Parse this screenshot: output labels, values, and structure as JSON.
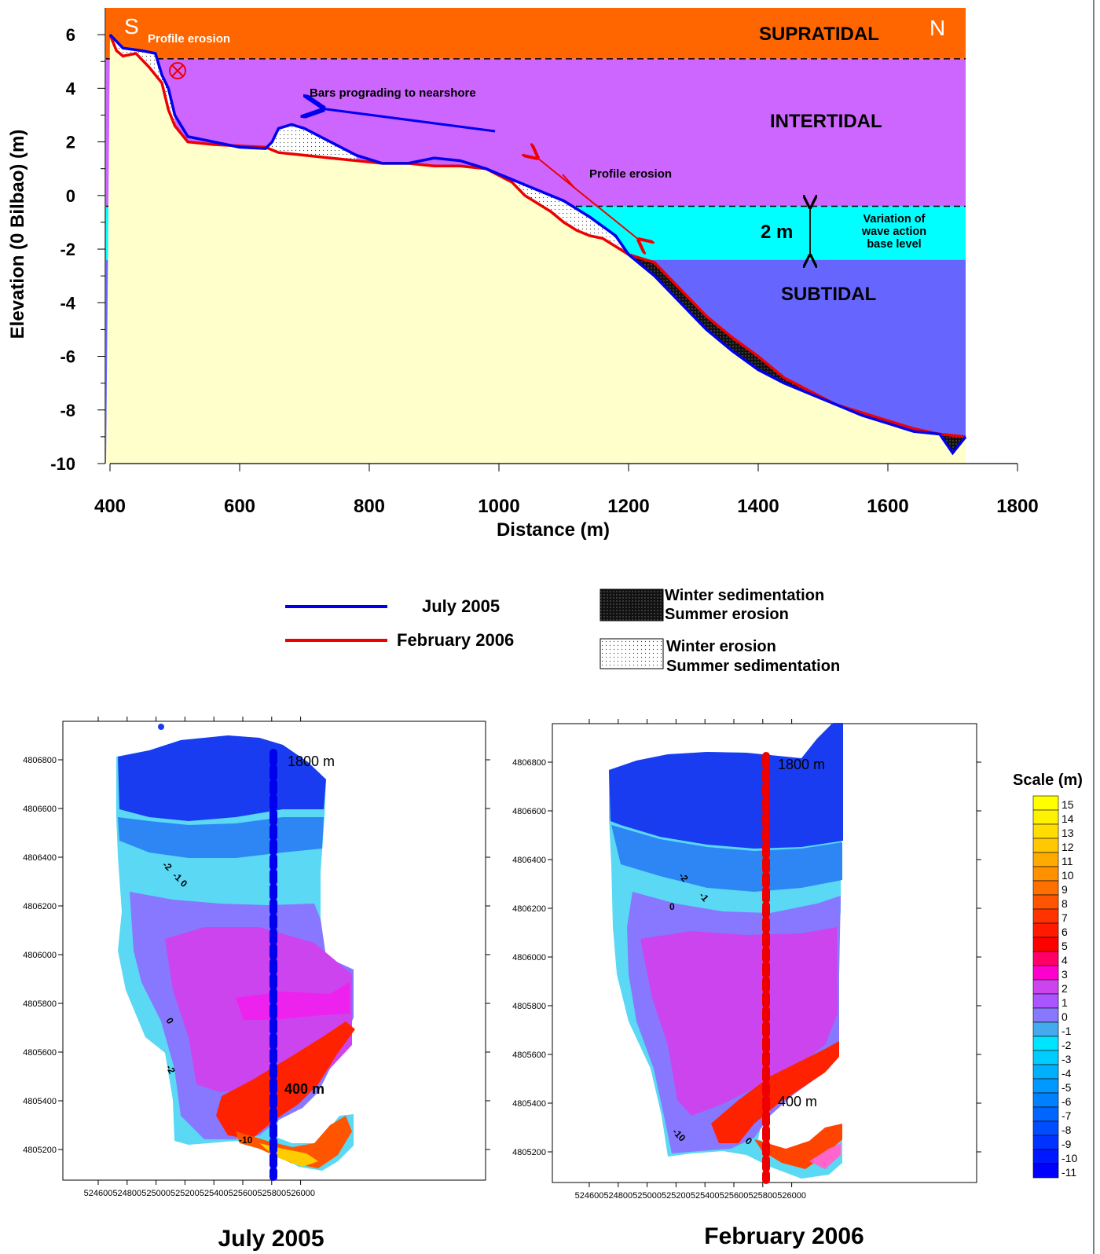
{
  "colors": {
    "supratidal": "#ff6600",
    "intertidal": "#cc66ff",
    "wave_band": "#00ffff",
    "subtidal": "#6666ff",
    "sand": "#ffffcc",
    "july": "#0000ee",
    "february": "#ee0000"
  },
  "chart_data": [
    {
      "type": "line",
      "xlabel": "Distance (m)",
      "ylabel": "Elevation (0 Bilbao) (m)",
      "xlim": [
        400,
        1800
      ],
      "ylim": [
        -10,
        7
      ],
      "x_ticks": [
        400,
        600,
        800,
        1000,
        1200,
        1400,
        1600,
        1800
      ],
      "y_ticks": [
        6,
        4,
        2,
        0,
        -2,
        -4,
        -6,
        -8,
        -10
      ],
      "zones": [
        {
          "name": "SUPRATIDAL",
          "top": 7,
          "bottom": 5.1,
          "color": "#ff6600"
        },
        {
          "name": "INTERTIDAL",
          "top": 5.1,
          "bottom": -0.4,
          "color": "#cc66ff"
        },
        {
          "name": "",
          "top": -0.4,
          "bottom": -2.4,
          "color": "#00ffff"
        },
        {
          "name": "SUBTIDAL",
          "top": -2.4,
          "bottom": -10,
          "color": "#6666ff"
        }
      ],
      "series": [
        {
          "name": "July 2005",
          "color": "#0000ee",
          "x": [
            400,
            420,
            450,
            470,
            480,
            490,
            500,
            520,
            560,
            600,
            640,
            650,
            660,
            680,
            700,
            740,
            780,
            820,
            860,
            900,
            940,
            980,
            1020,
            1060,
            1100,
            1140,
            1180,
            1200,
            1240,
            1280,
            1320,
            1360,
            1400,
            1440,
            1480,
            1520,
            1560,
            1600,
            1640,
            1680,
            1700,
            1720
          ],
          "y": [
            6.0,
            5.5,
            5.4,
            5.3,
            4.5,
            4.0,
            3.0,
            2.2,
            2.0,
            1.8,
            1.75,
            2.0,
            2.5,
            2.65,
            2.5,
            2.0,
            1.5,
            1.2,
            1.2,
            1.4,
            1.3,
            1.0,
            0.6,
            0.2,
            -0.2,
            -0.8,
            -1.5,
            -2.2,
            -3.0,
            -4.0,
            -5.0,
            -5.8,
            -6.5,
            -7.0,
            -7.4,
            -7.8,
            -8.2,
            -8.5,
            -8.8,
            -8.9,
            -9.6,
            -9.0
          ]
        },
        {
          "name": "February 2006",
          "color": "#ee0000",
          "x": [
            400,
            410,
            420,
            440,
            460,
            480,
            490,
            500,
            520,
            560,
            600,
            640,
            660,
            700,
            740,
            780,
            820,
            860,
            900,
            940,
            980,
            1020,
            1040,
            1080,
            1100,
            1120,
            1140,
            1160,
            1180,
            1200,
            1240,
            1280,
            1320,
            1360,
            1400,
            1440,
            1480,
            1520,
            1560,
            1600,
            1640,
            1680,
            1720
          ],
          "y": [
            6.0,
            5.4,
            5.2,
            5.3,
            4.8,
            4.2,
            3.2,
            2.6,
            2.0,
            1.9,
            1.85,
            1.8,
            1.6,
            1.5,
            1.4,
            1.3,
            1.2,
            1.2,
            1.1,
            1.1,
            1.0,
            0.5,
            0.0,
            -0.6,
            -1.0,
            -1.3,
            -1.5,
            -1.6,
            -1.9,
            -2.2,
            -2.5,
            -3.5,
            -4.5,
            -5.3,
            -6.0,
            -6.8,
            -7.3,
            -7.8,
            -8.1,
            -8.4,
            -8.7,
            -8.9,
            -9.0
          ]
        }
      ],
      "annotations": {
        "south": "S",
        "north": "N",
        "profile_erosion_top": "Profile erosion",
        "bars_prograding": "Bars prograding to nearshore",
        "profile_erosion_mid": "Profile erosion",
        "wave_height": "2 m",
        "wave_variation": [
          "Variation of",
          "wave action",
          "base level"
        ]
      }
    },
    {
      "type": "heatmap",
      "title": "July 2005",
      "x_ticks": [
        524600,
        524800,
        525000,
        525200,
        525400,
        525600,
        525800,
        526000
      ],
      "y_ticks": [
        4806800,
        4806600,
        4806400,
        4806200,
        4806000,
        4805800,
        4805600,
        4805400,
        4805200
      ],
      "profile_labels": [
        "1800 m",
        "400 m"
      ],
      "contour_labels": [
        "-2",
        "-1",
        "0",
        "0",
        "-2",
        "-10"
      ]
    },
    {
      "type": "heatmap",
      "title": "February 2006",
      "x_ticks": [
        524600,
        524800,
        525000,
        525200,
        525400,
        525600,
        525800,
        526000
      ],
      "y_ticks": [
        4806800,
        4806600,
        4806400,
        4806200,
        4806000,
        4805800,
        4805600,
        4805400,
        4805200
      ],
      "profile_labels": [
        "1800 m",
        "400 m"
      ],
      "contour_labels": [
        "-2",
        "-1",
        "0",
        "-10",
        "0"
      ]
    }
  ],
  "legend": {
    "july": "July 2005",
    "february": "February 2006",
    "winter_sed": [
      "Winter sedimentation",
      "Summer erosion"
    ],
    "winter_ero": [
      "Winter erosion",
      "Summer sedimentation"
    ]
  },
  "scale": {
    "title": "Scale (m)",
    "labels": [
      "15",
      "14",
      "13",
      "12",
      "11",
      "10",
      "9",
      "8",
      "7",
      "6",
      "5",
      "4",
      "3",
      "2",
      "1",
      "0",
      "-1",
      "-2",
      "-3",
      "-4",
      "-5",
      "-6",
      "-7",
      "-8",
      "-9",
      "-10",
      "-11"
    ],
    "colors": [
      "#ffff00",
      "#fff200",
      "#ffdd00",
      "#ffc800",
      "#ffaa00",
      "#ff9000",
      "#ff7000",
      "#ff5500",
      "#ff3300",
      "#ff1a00",
      "#ff0000",
      "#ff0066",
      "#ff00cc",
      "#cc44ee",
      "#aa55ff",
      "#8877ff",
      "#44aaee",
      "#00e5ff",
      "#00ccff",
      "#00b0ff",
      "#0099ff",
      "#0080ff",
      "#0066ff",
      "#004cff",
      "#0033ff",
      "#0018ff",
      "#0000ff"
    ]
  }
}
